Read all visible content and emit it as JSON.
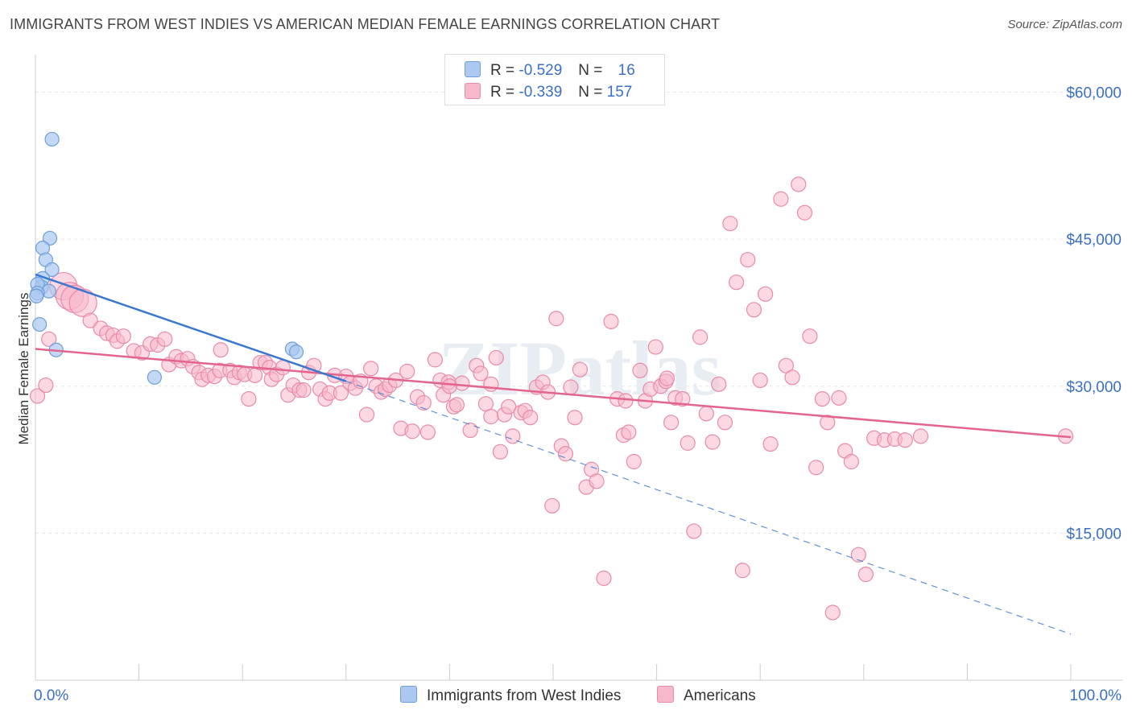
{
  "header": {
    "title": "IMMIGRANTS FROM WEST INDIES VS AMERICAN MEDIAN FEMALE EARNINGS CORRELATION CHART",
    "source": "Source: ZipAtlas.com"
  },
  "legend_top": {
    "rows": [
      {
        "r_label": "R =",
        "r_value": "-0.529",
        "n_label": "N =",
        "n_value": "16",
        "color": "#aac8f0"
      },
      {
        "r_label": "R =",
        "r_value": "-0.339",
        "n_label": "N =",
        "n_value": "157",
        "color": "#f7b8cb"
      }
    ]
  },
  "legend_bottom": {
    "items": [
      {
        "label": "Immigrants from West Indies",
        "color": "#aac8f0"
      },
      {
        "label": "Americans",
        "color": "#f7b8cb"
      }
    ]
  },
  "colors": {
    "blue_fill": "#aac8f0",
    "blue_stroke": "#6f9edb",
    "blue_line": "#3a78d0",
    "pink_fill": "#f7b8cb",
    "pink_stroke": "#e88aaa",
    "pink_line": "#e2648f",
    "tick_label": "#3a6fc4",
    "grid": "#e6e6e6"
  },
  "chart_data": {
    "type": "scatter",
    "ylabel": "Median Female Earnings",
    "xlabel": "",
    "xlim": [
      0,
      100
    ],
    "ylim": [
      0,
      63000
    ],
    "x_tick_labels": [
      "0.0%",
      "100.0%"
    ],
    "y_ticks": [
      15000,
      30000,
      45000,
      60000
    ],
    "y_tick_labels": [
      "$15,000",
      "$30,000",
      "$45,000",
      "$60,000"
    ],
    "grid": true,
    "watermark": "ZIPatlas",
    "series": [
      {
        "name": "Immigrants from West Indies",
        "points": [
          [
            1.6,
            55200
          ],
          [
            1.4,
            45100
          ],
          [
            0.7,
            44100
          ],
          [
            1.0,
            42900
          ],
          [
            1.6,
            41900
          ],
          [
            0.7,
            41000
          ],
          [
            0.6,
            40100
          ],
          [
            0.2,
            40400
          ],
          [
            1.3,
            39700
          ],
          [
            0.2,
            39500
          ],
          [
            0.4,
            36300
          ],
          [
            2.0,
            33700
          ],
          [
            11.5,
            30900
          ],
          [
            24.8,
            33800
          ],
          [
            25.2,
            33500
          ],
          [
            0.1,
            39200
          ]
        ],
        "trend": {
          "x0": 0,
          "y0": 41400,
          "x1": 30,
          "y1": 30500
        },
        "trend_ext": {
          "x0": 30,
          "y0": 30500,
          "x1": 100,
          "y1": 4700
        }
      },
      {
        "name": "Americans",
        "points": [
          [
            0.2,
            29000
          ],
          [
            1.0,
            30100
          ],
          [
            1.3,
            34800
          ],
          [
            2.7,
            40200
          ],
          [
            3.3,
            39200
          ],
          [
            3.8,
            38900
          ],
          [
            4.6,
            38500
          ],
          [
            5.3,
            36700
          ],
          [
            6.3,
            35900
          ],
          [
            6.9,
            35400
          ],
          [
            7.5,
            35200
          ],
          [
            7.9,
            34600
          ],
          [
            8.5,
            35100
          ],
          [
            9.5,
            33600
          ],
          [
            10.3,
            33400
          ],
          [
            11.1,
            34300
          ],
          [
            11.8,
            34200
          ],
          [
            12.5,
            34800
          ],
          [
            12.9,
            32200
          ],
          [
            13.6,
            33000
          ],
          [
            14.1,
            32600
          ],
          [
            14.7,
            32800
          ],
          [
            15.2,
            32000
          ],
          [
            15.8,
            31400
          ],
          [
            16.1,
            30700
          ],
          [
            16.7,
            31100
          ],
          [
            17.3,
            31000
          ],
          [
            17.8,
            31600
          ],
          [
            17.9,
            33700
          ],
          [
            18.8,
            31600
          ],
          [
            19.2,
            30900
          ],
          [
            19.7,
            31400
          ],
          [
            20.2,
            31200
          ],
          [
            20.6,
            28700
          ],
          [
            21.2,
            31100
          ],
          [
            21.7,
            32400
          ],
          [
            22.2,
            32400
          ],
          [
            22.6,
            31900
          ],
          [
            22.8,
            30700
          ],
          [
            23.3,
            31200
          ],
          [
            23.9,
            31900
          ],
          [
            24.4,
            29100
          ],
          [
            24.9,
            30100
          ],
          [
            25.5,
            29600
          ],
          [
            25.9,
            29600
          ],
          [
            26.4,
            31400
          ],
          [
            26.9,
            32100
          ],
          [
            27.5,
            29700
          ],
          [
            28.0,
            28700
          ],
          [
            28.4,
            29300
          ],
          [
            28.9,
            31100
          ],
          [
            29.5,
            29300
          ],
          [
            30.0,
            31000
          ],
          [
            30.4,
            30300
          ],
          [
            30.9,
            29800
          ],
          [
            31.4,
            30500
          ],
          [
            32.0,
            27100
          ],
          [
            32.4,
            31800
          ],
          [
            32.9,
            30000
          ],
          [
            33.4,
            29400
          ],
          [
            33.8,
            29700
          ],
          [
            34.2,
            30100
          ],
          [
            34.8,
            30600
          ],
          [
            35.3,
            25700
          ],
          [
            35.9,
            31500
          ],
          [
            36.4,
            25400
          ],
          [
            36.9,
            28900
          ],
          [
            37.5,
            28300
          ],
          [
            37.9,
            25300
          ],
          [
            38.6,
            32700
          ],
          [
            39.1,
            30600
          ],
          [
            39.4,
            29100
          ],
          [
            39.9,
            30400
          ],
          [
            40.4,
            27900
          ],
          [
            40.7,
            28100
          ],
          [
            41.2,
            30300
          ],
          [
            42.0,
            25500
          ],
          [
            42.6,
            32100
          ],
          [
            43.0,
            31300
          ],
          [
            43.5,
            28200
          ],
          [
            44.0,
            26900
          ],
          [
            44.5,
            32900
          ],
          [
            44.9,
            23300
          ],
          [
            45.3,
            27100
          ],
          [
            45.7,
            27900
          ],
          [
            46.1,
            24900
          ],
          [
            46.9,
            27300
          ],
          [
            47.3,
            27500
          ],
          [
            47.8,
            26800
          ],
          [
            48.4,
            29900
          ],
          [
            49.0,
            30400
          ],
          [
            49.5,
            29400
          ],
          [
            49.9,
            17800
          ],
          [
            50.3,
            36900
          ],
          [
            50.8,
            23900
          ],
          [
            51.2,
            23100
          ],
          [
            51.7,
            29900
          ],
          [
            52.1,
            26800
          ],
          [
            52.6,
            31700
          ],
          [
            53.2,
            19700
          ],
          [
            53.7,
            21500
          ],
          [
            54.2,
            20300
          ],
          [
            54.9,
            10400
          ],
          [
            55.6,
            36600
          ],
          [
            56.2,
            28700
          ],
          [
            56.8,
            25000
          ],
          [
            57.3,
            25300
          ],
          [
            57.8,
            22300
          ],
          [
            58.4,
            31600
          ],
          [
            58.9,
            28500
          ],
          [
            59.4,
            29700
          ],
          [
            59.9,
            34000
          ],
          [
            60.4,
            30000
          ],
          [
            60.9,
            30500
          ],
          [
            61.4,
            26300
          ],
          [
            61.8,
            28800
          ],
          [
            62.5,
            28700
          ],
          [
            63.0,
            24200
          ],
          [
            63.6,
            15200
          ],
          [
            64.2,
            35000
          ],
          [
            64.8,
            27200
          ],
          [
            65.4,
            24300
          ],
          [
            66.0,
            30200
          ],
          [
            66.6,
            26300
          ],
          [
            67.1,
            46600
          ],
          [
            67.7,
            40600
          ],
          [
            68.3,
            11200
          ],
          [
            68.8,
            42900
          ],
          [
            69.4,
            37800
          ],
          [
            70.0,
            30600
          ],
          [
            70.5,
            39400
          ],
          [
            71.0,
            24100
          ],
          [
            72.0,
            49100
          ],
          [
            72.5,
            32100
          ],
          [
            73.1,
            30900
          ],
          [
            73.7,
            50600
          ],
          [
            74.3,
            47700
          ],
          [
            74.8,
            35100
          ],
          [
            75.4,
            21700
          ],
          [
            76.0,
            28700
          ],
          [
            76.5,
            26300
          ],
          [
            77.0,
            6900
          ],
          [
            77.6,
            28800
          ],
          [
            78.2,
            23400
          ],
          [
            78.8,
            22300
          ],
          [
            79.5,
            12800
          ],
          [
            80.2,
            10800
          ],
          [
            81.0,
            24700
          ],
          [
            82.0,
            24500
          ],
          [
            83.0,
            24600
          ],
          [
            84.0,
            24500
          ],
          [
            85.5,
            24900
          ],
          [
            99.5,
            24900
          ],
          [
            61.0,
            30800
          ],
          [
            57.0,
            28500
          ],
          [
            40.0,
            30000
          ],
          [
            44.0,
            30200
          ]
        ],
        "trend": {
          "x0": 0,
          "y0": 33800,
          "x1": 100,
          "y1": 24800
        }
      }
    ]
  }
}
